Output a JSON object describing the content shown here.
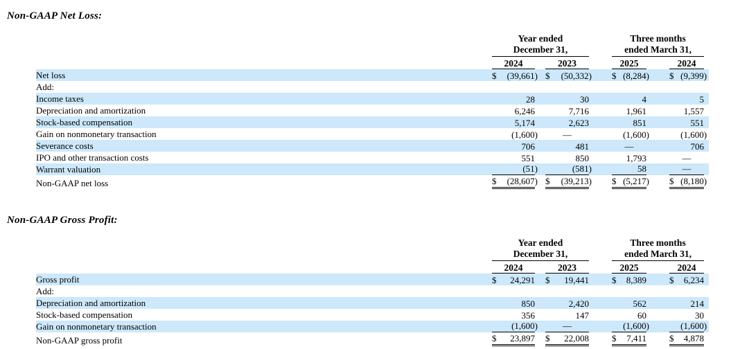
{
  "page": {
    "background_color": "#ffffff",
    "stripe_color": "#cce8fa",
    "text_color": "#000000"
  },
  "sections": [
    {
      "id": "non-gaap-net-loss",
      "title": "Non-GAAP Net Loss:",
      "column_groups": [
        {
          "line1": "Year ended",
          "line2": "December 31,"
        },
        {
          "line1": "Three months",
          "line2": "ended March 31,"
        }
      ],
      "year_columns": [
        "2024",
        "2023",
        "2025",
        "2024"
      ],
      "rows": [
        {
          "label": "Net loss",
          "shaded": true,
          "values": [
            {
              "cur": "$",
              "amt": "(39,661)"
            },
            {
              "cur": "$",
              "amt": "(50,332)"
            },
            {
              "cur": "$",
              "amt": "(8,284)"
            },
            {
              "cur": "$",
              "amt": "(9,399)"
            }
          ]
        },
        {
          "label": "Add:",
          "shaded": false,
          "values": [
            {},
            {},
            {},
            {}
          ]
        },
        {
          "label": "Income taxes",
          "shaded": true,
          "values": [
            {
              "amt": "28"
            },
            {
              "amt": "30"
            },
            {
              "amt": "4"
            },
            {
              "amt": "5"
            }
          ]
        },
        {
          "label": "Depreciation and amortization",
          "shaded": false,
          "values": [
            {
              "amt": "6,246"
            },
            {
              "amt": "7,716"
            },
            {
              "amt": "1,961"
            },
            {
              "amt": "1,557"
            }
          ]
        },
        {
          "label": "Stock-based compensation",
          "shaded": true,
          "values": [
            {
              "amt": "5,174"
            },
            {
              "amt": "2,623"
            },
            {
              "amt": "851"
            },
            {
              "amt": "551"
            }
          ]
        },
        {
          "label": "Gain on nonmonetary transaction",
          "shaded": false,
          "values": [
            {
              "amt": "(1,600)"
            },
            {
              "amt": "—"
            },
            {
              "amt": "(1,600)"
            },
            {
              "amt": "(1,600)"
            }
          ]
        },
        {
          "label": "Severance costs",
          "shaded": true,
          "values": [
            {
              "amt": "706"
            },
            {
              "amt": "481"
            },
            {
              "amt": "—"
            },
            {
              "amt": "706"
            }
          ]
        },
        {
          "label": "IPO and other transaction costs",
          "shaded": false,
          "values": [
            {
              "amt": "551"
            },
            {
              "amt": "850"
            },
            {
              "amt": "1,793"
            },
            {
              "amt": "—"
            }
          ]
        },
        {
          "label": "Warrant valuation",
          "shaded": true,
          "underline": "single",
          "values": [
            {
              "amt": "(51)"
            },
            {
              "amt": "(581)"
            },
            {
              "amt": "58"
            },
            {
              "amt": "—"
            }
          ]
        },
        {
          "label": "Non-GAAP net loss",
          "shaded": false,
          "underline": "double",
          "values": [
            {
              "cur": "$",
              "amt": "(28,607)"
            },
            {
              "cur": "$",
              "amt": "(39,213)"
            },
            {
              "cur": "$",
              "amt": "(5,217)"
            },
            {
              "cur": "$",
              "amt": "(8,180)"
            }
          ]
        }
      ]
    },
    {
      "id": "non-gaap-gross-profit",
      "title": "Non-GAAP Gross Profit:",
      "column_groups": [
        {
          "line1": "Year ended",
          "line2": "December 31,"
        },
        {
          "line1": "Three months",
          "line2": "ended March 31,"
        }
      ],
      "year_columns": [
        "2024",
        "2023",
        "2025",
        "2024"
      ],
      "rows": [
        {
          "label": "Gross profit",
          "shaded": true,
          "values": [
            {
              "cur": "$",
              "amt": "24,291"
            },
            {
              "cur": "$",
              "amt": "19,441"
            },
            {
              "cur": "$",
              "amt": "8,389"
            },
            {
              "cur": "$",
              "amt": "6,234"
            }
          ]
        },
        {
          "label": "Add:",
          "shaded": false,
          "values": [
            {},
            {},
            {},
            {}
          ]
        },
        {
          "label": "Depreciation and amortization",
          "shaded": true,
          "values": [
            {
              "amt": "850"
            },
            {
              "amt": "2,420"
            },
            {
              "amt": "562"
            },
            {
              "amt": "214"
            }
          ]
        },
        {
          "label": "Stock-based compensation",
          "shaded": false,
          "values": [
            {
              "amt": "356"
            },
            {
              "amt": "147"
            },
            {
              "amt": "60"
            },
            {
              "amt": "30"
            }
          ]
        },
        {
          "label": "Gain on nonmonetary transaction",
          "shaded": true,
          "underline": "single",
          "values": [
            {
              "amt": "(1,600)"
            },
            {
              "amt": "—"
            },
            {
              "amt": "(1,600)"
            },
            {
              "amt": "(1,600)"
            }
          ]
        },
        {
          "label": "Non-GAAP gross profit",
          "shaded": false,
          "underline": "double",
          "values": [
            {
              "cur": "$",
              "amt": "23,897"
            },
            {
              "cur": "$",
              "amt": "22,008"
            },
            {
              "cur": "$",
              "amt": "7,411"
            },
            {
              "cur": "$",
              "amt": "4,878"
            }
          ]
        }
      ]
    }
  ]
}
